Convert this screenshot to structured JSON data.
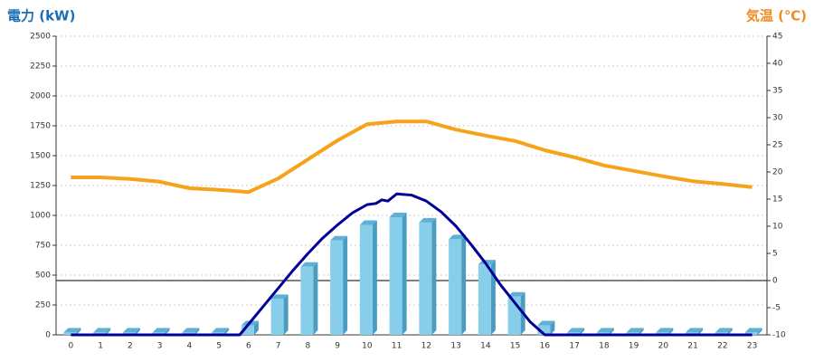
{
  "chart_data": {
    "type": "bar",
    "y_label": "電力 (kW)",
    "y_label_color": "#1a6fb5",
    "y2_label": "気温 (℃)",
    "y2_label_color": "#f08c1e",
    "categories": [
      "0",
      "1",
      "2",
      "3",
      "4",
      "5",
      "6",
      "7",
      "8",
      "9",
      "10",
      "11",
      "12",
      "13",
      "14",
      "15",
      "16",
      "17",
      "18",
      "19",
      "20",
      "21",
      "22",
      "23"
    ],
    "ylim": [
      0,
      2500
    ],
    "yticks": [
      0,
      250,
      500,
      750,
      1000,
      1250,
      1500,
      1750,
      2000,
      2250,
      2500
    ],
    "y2lim": [
      -10,
      45
    ],
    "y2ticks": [
      -10,
      -5,
      0,
      5,
      10,
      15,
      20,
      25,
      30,
      35,
      40,
      45
    ],
    "grid": true,
    "series": [
      {
        "type": "bar",
        "color": "#87ceeb",
        "values": [
          20,
          20,
          20,
          20,
          20,
          20,
          80,
          300,
          570,
          790,
          920,
          985,
          940,
          800,
          590,
          320,
          80,
          20,
          20,
          20,
          20,
          20,
          20,
          20
        ]
      },
      {
        "type": "line",
        "axis": "y2",
        "color": "#f5a31a",
        "values": [
          19,
          19,
          18.7,
          18.2,
          17,
          16.7,
          16.3,
          18.8,
          22.3,
          25.8,
          28.8,
          29.3,
          29.3,
          27.8,
          26.7,
          25.7,
          24,
          22.7,
          21.2,
          20.2,
          19.2,
          18.3,
          17.8,
          17.2
        ]
      },
      {
        "type": "line",
        "color": "#000099",
        "x": [
          0,
          5.7,
          6,
          6.5,
          7,
          7.5,
          8,
          8.5,
          9,
          9.5,
          10,
          10.3,
          10.5,
          10.7,
          11,
          11.5,
          12,
          12.5,
          13,
          13.5,
          14,
          14.5,
          15,
          15.5,
          16,
          23
        ],
        "values": [
          0,
          0,
          90,
          240,
          390,
          540,
          680,
          810,
          920,
          1020,
          1090,
          1100,
          1130,
          1120,
          1180,
          1170,
          1120,
          1030,
          910,
          760,
          600,
          420,
          265,
          110,
          0,
          0
        ]
      }
    ]
  }
}
